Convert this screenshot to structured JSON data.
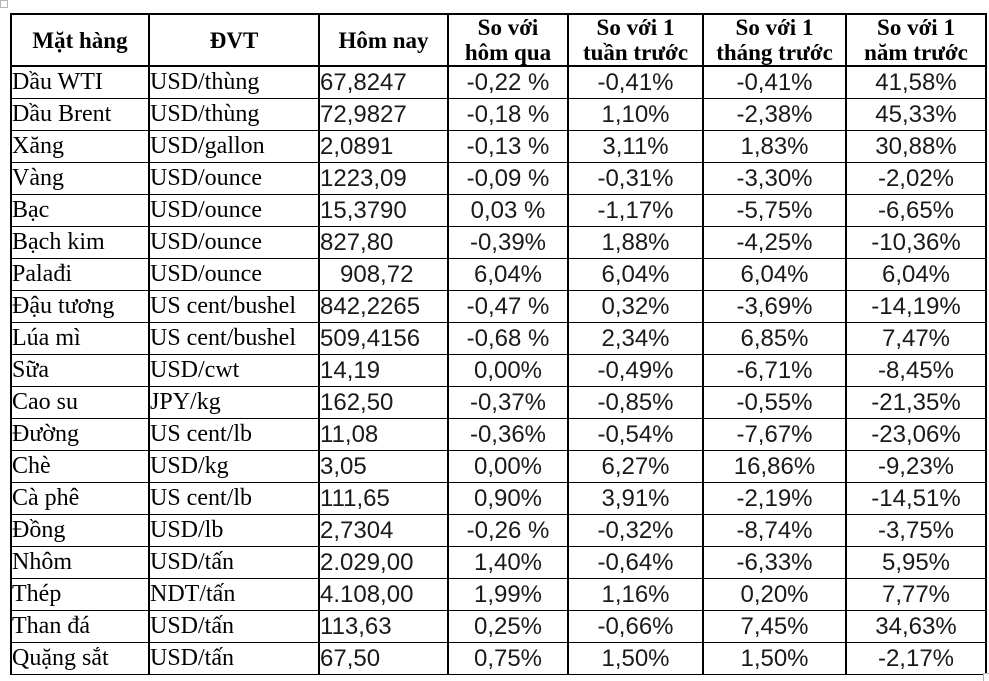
{
  "table": {
    "columns": [
      {
        "key": "name",
        "label": "Mặt hàng"
      },
      {
        "key": "unit",
        "label": "ĐVT"
      },
      {
        "key": "today",
        "label": "Hôm nay"
      },
      {
        "key": "vs_day",
        "label": "So với\nhôm qua"
      },
      {
        "key": "vs_week",
        "label": "So với 1\ntuần trước"
      },
      {
        "key": "vs_month",
        "label": "So với 1\ntháng trước"
      },
      {
        "key": "vs_year",
        "label": "So với 1\nnăm trước"
      }
    ],
    "rows": [
      {
        "name": "Dầu WTI",
        "unit": "USD/thùng",
        "today": "67,8247",
        "vs_day": "-0,22 %",
        "vs_week": "-0,41%",
        "vs_month": "-0,41%",
        "vs_year": "41,58%"
      },
      {
        "name": "Dầu Brent",
        "unit": "USD/thùng",
        "today": "72,9827",
        "vs_day": "-0,18 %",
        "vs_week": "1,10%",
        "vs_month": "-2,38%",
        "vs_year": "45,33%"
      },
      {
        "name": "Xăng",
        "unit": "USD/gallon",
        "today": "2,0891",
        "vs_day": "-0,13 %",
        "vs_week": "3,11%",
        "vs_month": "1,83%",
        "vs_year": "30,88%"
      },
      {
        "name": "Vàng",
        "unit": "USD/ounce",
        "today": "1223,09",
        "vs_day": "-0,09 %",
        "vs_week": "-0,31%",
        "vs_month": "-3,30%",
        "vs_year": "-2,02%"
      },
      {
        "name": "Bạc",
        "unit": "USD/ounce",
        "today": "15,3790",
        "vs_day": "0,03 %",
        "vs_week": "-1,17%",
        "vs_month": "-5,75%",
        "vs_year": "-6,65%"
      },
      {
        "name": "Bạch kim",
        "unit": "USD/ounce",
        "today": "827,80",
        "vs_day": "-0,39%",
        "vs_week": "1,88%",
        "vs_month": "-4,25%",
        "vs_year": "-10,36%"
      },
      {
        "name": "Palađi",
        "unit": "USD/ounce",
        "today": "   908,72",
        "vs_day": "6,04%",
        "vs_week": "6,04%",
        "vs_month": "6,04%",
        "vs_year": "6,04%"
      },
      {
        "name": "Đậu tương",
        "unit": "US cent/bushel",
        "today": "842,2265",
        "vs_day": "-0,47 %",
        "vs_week": "0,32%",
        "vs_month": "-3,69%",
        "vs_year": "-14,19%"
      },
      {
        "name": "Lúa mì",
        "unit": "US cent/bushel",
        "today": "509,4156",
        "vs_day": "-0,68 %",
        "vs_week": "2,34%",
        "vs_month": "6,85%",
        "vs_year": "7,47%"
      },
      {
        "name": "Sữa",
        "unit": "USD/cwt",
        "today": "14,19",
        "vs_day": "0,00%",
        "vs_week": "-0,49%",
        "vs_month": "-6,71%",
        "vs_year": "-8,45%"
      },
      {
        "name": "Cao su",
        "unit": "JPY/kg",
        "today": "162,50",
        "vs_day": "-0,37%",
        "vs_week": "-0,85%",
        "vs_month": "-0,55%",
        "vs_year": "-21,35%"
      },
      {
        "name": "Đường",
        "unit": "US cent/lb",
        "today": "11,08",
        "vs_day": "-0,36%",
        "vs_week": "-0,54%",
        "vs_month": "-7,67%",
        "vs_year": "-23,06%"
      },
      {
        "name": "Chè",
        "unit": "USD/kg",
        "today": "3,05",
        "vs_day": "0,00%",
        "vs_week": "6,27%",
        "vs_month": "16,86%",
        "vs_year": "-9,23%"
      },
      {
        "name": "Cà phê",
        "unit": "US cent/lb",
        "today": "111,65",
        "vs_day": "0,90%",
        "vs_week": "3,91%",
        "vs_month": "-2,19%",
        "vs_year": "-14,51%"
      },
      {
        "name": "Đồng",
        "unit": "USD/lb",
        "today": "2,7304",
        "vs_day": "-0,26 %",
        "vs_week": "-0,32%",
        "vs_month": "-8,74%",
        "vs_year": "-3,75%"
      },
      {
        "name": "Nhôm",
        "unit": "USD/tấn",
        "today": "2.029,00",
        "vs_day": "1,40%",
        "vs_week": "-0,64%",
        "vs_month": "-6,33%",
        "vs_year": "5,95%"
      },
      {
        "name": "Thép",
        "unit": "NDT/tấn",
        "today": "4.108,00",
        "vs_day": "1,99%",
        "vs_week": "1,16%",
        "vs_month": "0,20%",
        "vs_year": "7,77%"
      },
      {
        "name": "Than đá",
        "unit": "USD/tấn",
        "today": "113,63",
        "vs_day": "0,25%",
        "vs_week": "-0,66%",
        "vs_month": "7,45%",
        "vs_year": "34,63%"
      },
      {
        "name": "Quặng sắt",
        "unit": "USD/tấn",
        "today": "67,50",
        "vs_day": "0,75%",
        "vs_week": "1,50%",
        "vs_month": "1,50%",
        "vs_year": "-2,17%"
      }
    ]
  },
  "colors": {
    "border": "#000000",
    "text": "#000000",
    "number_text": "#1a1a1a",
    "background": "#ffffff",
    "handle_border": "#b5b5b5"
  }
}
